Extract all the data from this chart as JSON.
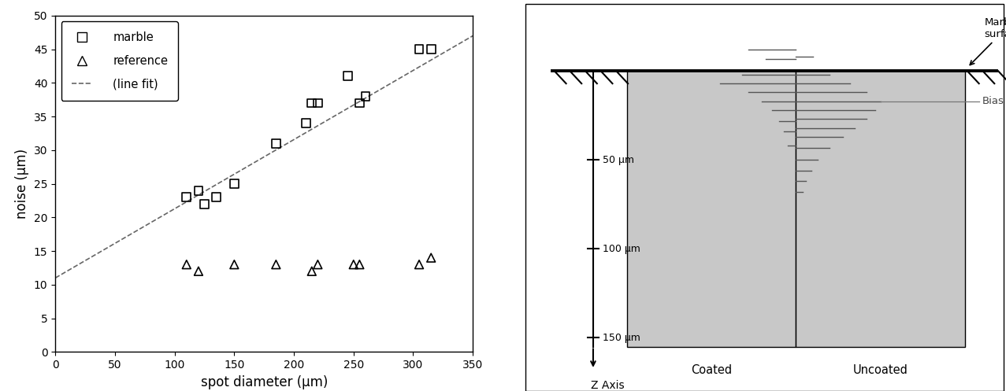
{
  "scatter_marble_x": [
    110,
    120,
    125,
    135,
    150,
    185,
    210,
    215,
    220,
    245,
    255,
    260,
    305,
    315
  ],
  "scatter_marble_y": [
    23,
    24,
    22,
    23,
    25,
    31,
    34,
    37,
    37,
    41,
    37,
    38,
    45,
    45
  ],
  "scatter_ref_x": [
    110,
    120,
    150,
    185,
    215,
    220,
    250,
    255,
    305,
    315
  ],
  "scatter_ref_y": [
    13,
    12,
    13,
    13,
    12,
    13,
    13,
    13,
    13,
    14
  ],
  "linefit_x": [
    0,
    350
  ],
  "linefit_y": [
    11,
    47
  ],
  "xlabel": "spot diameter (μm)",
  "ylabel": "noise (μm)",
  "xlim": [
    0,
    350
  ],
  "ylim": [
    0,
    50
  ],
  "xticks": [
    0,
    50,
    100,
    150,
    200,
    250,
    300,
    350
  ],
  "yticks": [
    0,
    5,
    10,
    15,
    20,
    25,
    30,
    35,
    40,
    45,
    50
  ],
  "bg_color": "#ffffff",
  "panel_bg": "#c8c8c8",
  "bias_label": "Bias",
  "coated_label": "Coated",
  "uncoated_label": "Uncoated",
  "marble_surface_label": "Marble's\nsurface",
  "zaxis_label": "Z Axis",
  "depth_values": [
    50,
    100,
    150
  ],
  "coated_lines": [
    [
      -12,
      0.28
    ],
    [
      -7,
      0.18
    ],
    [
      2,
      0.32
    ],
    [
      7,
      0.45
    ],
    [
      12,
      0.28
    ],
    [
      17,
      0.2
    ],
    [
      22,
      0.14
    ],
    [
      28,
      0.1
    ],
    [
      34,
      0.07
    ],
    [
      42,
      0.05
    ]
  ],
  "uncoated_lines": [
    [
      -8,
      0.1
    ],
    [
      2,
      0.2
    ],
    [
      7,
      0.32
    ],
    [
      12,
      0.42
    ],
    [
      17,
      0.5
    ],
    [
      22,
      0.47
    ],
    [
      27,
      0.42
    ],
    [
      32,
      0.35
    ],
    [
      37,
      0.28
    ],
    [
      43,
      0.2
    ],
    [
      50,
      0.13
    ],
    [
      56,
      0.09
    ],
    [
      62,
      0.06
    ],
    [
      68,
      0.04
    ]
  ],
  "bias_depth": 17
}
